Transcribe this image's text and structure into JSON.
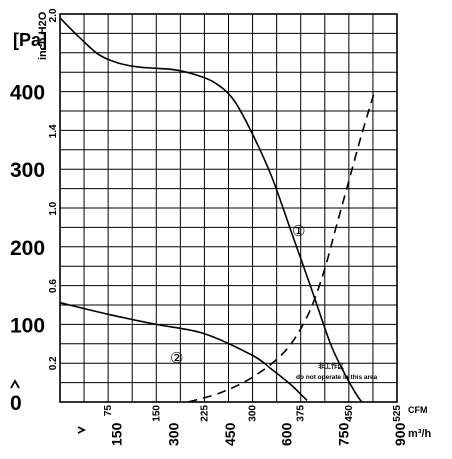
{
  "chart_data": {
    "type": "line",
    "pressure_unit": "[Pa]",
    "pressure_unit_alt": "inch H2O",
    "flow_unit_cfm": "CFM",
    "flow_unit_m3h": "m³/h",
    "pressure_ticks": [
      "0",
      "100",
      "200",
      "300",
      "400"
    ],
    "pressure_ticks_inh2o": [
      "0.2",
      "0.6",
      "1.0",
      "1.4",
      "2.0"
    ],
    "flow_ticks_cfm": [
      "75",
      "150",
      "225",
      "300",
      "375",
      "450",
      "525"
    ],
    "flow_ticks_m3h": [
      "150",
      "300",
      "450",
      "600",
      "750",
      "900"
    ],
    "xlim_cfm": [
      0,
      525
    ],
    "ylim_pa": [
      0,
      500
    ],
    "grid": true,
    "curve_markers": [
      "①",
      "②"
    ],
    "zone_label_cn": "非工作区",
    "zone_label_en": "do not operate in this area",
    "series": [
      {
        "marker": "①",
        "style": "solid",
        "x_cfm": [
          0,
          30,
          60,
          90,
          120,
          150,
          180,
          210,
          240,
          270,
          300,
          330,
          360,
          390,
          420,
          440,
          460,
          470
        ],
        "y_pa": [
          495,
          470,
          448,
          437,
          432,
          430,
          428,
          422,
          412,
          390,
          345,
          290,
          220,
          150,
          78,
          42,
          12,
          0
        ]
      },
      {
        "marker": "②",
        "style": "solid",
        "x_cfm": [
          0,
          75,
          150,
          225,
          300,
          330,
          360,
          375,
          385
        ],
        "y_pa": [
          128,
          113,
          100,
          88,
          60,
          42,
          22,
          10,
          2
        ]
      },
      {
        "marker": "",
        "style": "dashed",
        "x_cfm": [
          200,
          250,
          300,
          350,
          385,
          410,
          430,
          450,
          470,
          490
        ],
        "y_pa": [
          0,
          12,
          32,
          65,
          110,
          165,
          225,
          285,
          345,
          400
        ]
      }
    ]
  }
}
